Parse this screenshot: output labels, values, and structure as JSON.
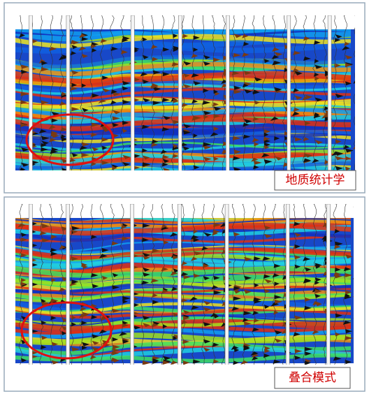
{
  "panels": [
    {
      "label": "地质统计学"
    },
    {
      "label": "叠合模式"
    }
  ]
}
